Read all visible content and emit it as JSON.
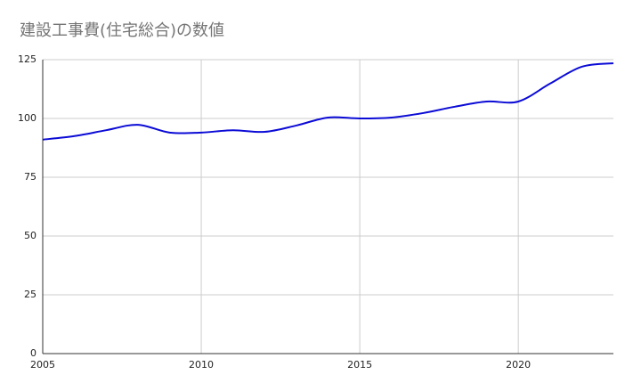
{
  "chart_data": {
    "type": "line",
    "title": "建設工事費(住宅総合)の数値",
    "x": [
      2005,
      2006,
      2007,
      2008,
      2009,
      2010,
      2011,
      2012,
      2013,
      2014,
      2015,
      2016,
      2017,
      2018,
      2019,
      2020,
      2021,
      2022,
      2023
    ],
    "series": [
      {
        "name": "建設工事費(住宅総合)",
        "color": "#0b0bd6",
        "values": [
          91,
          92.5,
          95,
          97.3,
          94,
          94,
          95,
          94.3,
          97,
          100.4,
          100,
          100.4,
          102.3,
          105,
          107.2,
          107.2,
          114.8,
          122,
          123.5
        ]
      }
    ],
    "xlim": [
      2005,
      2023
    ],
    "xticks": [
      2005,
      2010,
      2015,
      2020
    ],
    "ylim": [
      0,
      125
    ],
    "yticks": [
      0,
      25,
      50,
      75,
      100,
      125
    ],
    "grid": true
  }
}
